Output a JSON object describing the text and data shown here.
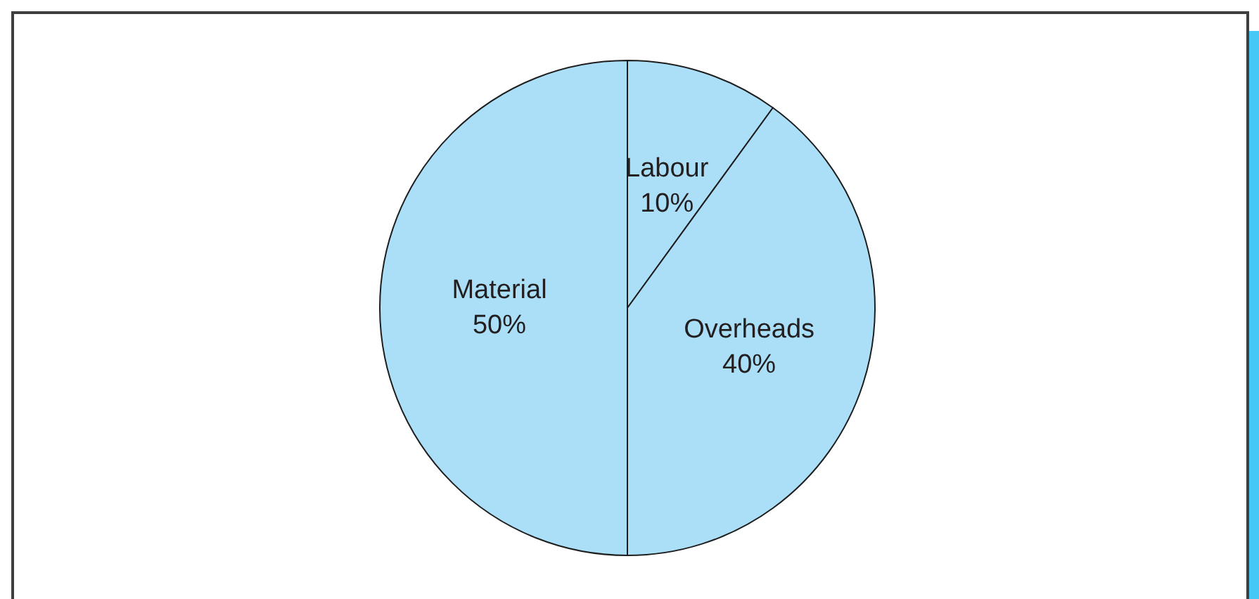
{
  "chart_data": {
    "type": "pie",
    "categories": [
      "Labour",
      "Overheads",
      "Material"
    ],
    "values": [
      10,
      40,
      50
    ],
    "value_labels": [
      "10%",
      "40%",
      "50%"
    ],
    "colors": [
      "#abdff8",
      "#abdff8",
      "#abdff8"
    ],
    "legend": false
  }
}
